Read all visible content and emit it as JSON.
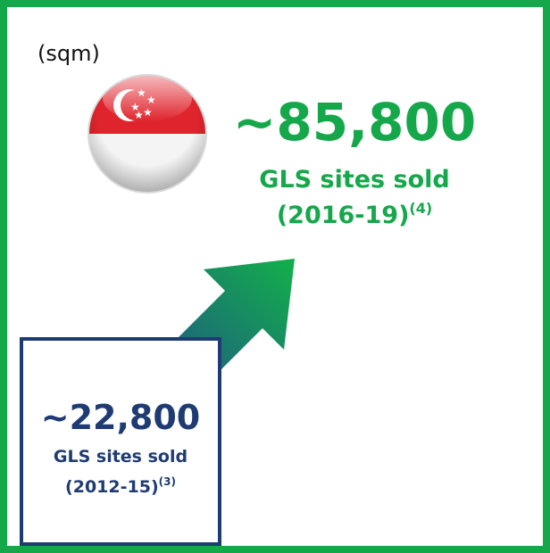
{
  "unit": "(sqm)",
  "recent": {
    "value": "~85,800",
    "label": "GLS sites sold",
    "period": "(2016-19)",
    "note": "(4)"
  },
  "earlier": {
    "value": "~22,800",
    "label": "GLS sites sold",
    "period": "(2012-15)",
    "note": "(3)"
  }
}
